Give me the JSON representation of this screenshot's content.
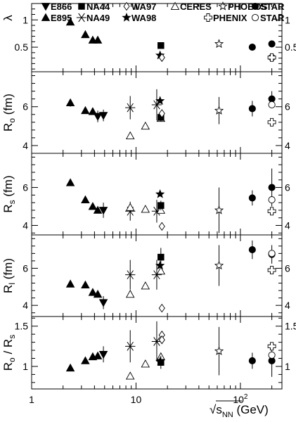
{
  "chart_data": {
    "type": "scatter",
    "x_scale": "log",
    "xlim": [
      1,
      250
    ],
    "x_ticks": [
      {
        "v": 1,
        "label": "1"
      },
      {
        "v": 10,
        "label": "10"
      },
      {
        "v": 100,
        "label": "10²"
      }
    ],
    "xlabel": "√s_NN (GeV)",
    "xlabel_parts": {
      "root": "√",
      "s": "s",
      "sub": "NN",
      "unit": " (GeV)"
    },
    "legend": [
      {
        "label": "E866",
        "marker": "tri-down",
        "series": "e866"
      },
      {
        "label": "NA44",
        "marker": "square",
        "series": "na44"
      },
      {
        "label": "WA97",
        "marker": "diamond-open",
        "series": "wa97"
      },
      {
        "label": "CERES",
        "marker": "tri-open",
        "series": "ceres"
      },
      {
        "label": "PHOBOS",
        "marker": "star-open",
        "series": "phobos"
      },
      {
        "label": "STAR",
        "marker": "circle",
        "series": "star_filled"
      },
      {
        "label": "E895",
        "marker": "tri-up",
        "series": "e895"
      },
      {
        "label": "NA49",
        "marker": "asterisk",
        "series": "na49"
      },
      {
        "label": "WA98",
        "marker": "star",
        "series": "wa98"
      },
      {
        "label": "PHENIX",
        "marker": "cross-open",
        "series": "phenix"
      },
      {
        "label": "STAR",
        "marker": "circle-open",
        "series": "star_open"
      }
    ],
    "panels": [
      {
        "id": "lambda",
        "ylabel": "λ",
        "ylim": [
          0.05,
          1.3
        ],
        "yticks": [
          {
            "v": 0.5,
            "label": "0.5"
          },
          {
            "v": 1,
            "label": "1"
          }
        ],
        "series": [
          {
            "id": "e895",
            "points": [
              [
                2.35,
                0.96
              ],
              [
                3.27,
                0.73
              ],
              [
                3.85,
                0.63
              ],
              [
                4.3,
                0.63
              ]
            ]
          },
          {
            "id": "na44",
            "points": [
              [
                17.3,
                0.53
              ]
            ]
          },
          {
            "id": "wa98",
            "points": [
              [
                17.0,
                0.35
              ]
            ]
          },
          {
            "id": "wa97",
            "points": [
              [
                17.7,
                0.31
              ]
            ]
          },
          {
            "id": "phobos",
            "points": [
              [
                62.4,
                0.56
              ]
            ]
          },
          {
            "id": "star_filled",
            "points": [
              [
                130,
                0.5
              ],
              [
                200,
                0.56
              ]
            ]
          },
          {
            "id": "star_open",
            "points": [
              [
                200,
                0.31
              ]
            ]
          },
          {
            "id": "phenix",
            "points": [
              [
                200,
                0.31
              ]
            ]
          }
        ]
      },
      {
        "id": "ro",
        "ylabel": "R_o (fm)",
        "ylabel_parts": {
          "main": "R",
          "sub": "o",
          "unit": " (fm)"
        },
        "ylim": [
          3.6,
          7.8
        ],
        "yticks": [
          {
            "v": 4,
            "label": "4"
          },
          {
            "v": 6,
            "label": "6"
          }
        ],
        "series": [
          {
            "id": "e895",
            "points": [
              [
                2.35,
                6.2,
                0.2
              ],
              [
                3.27,
                5.8,
                0.15
              ],
              [
                3.85,
                5.75,
                0.15
              ]
            ]
          },
          {
            "id": "e866",
            "points": [
              [
                4.3,
                5.5,
                0.3
              ],
              [
                4.87,
                5.55,
                0.3
              ]
            ]
          },
          {
            "id": "na49",
            "points": [
              [
                8.8,
                5.95,
                0.6
              ],
              [
                15.8,
                6.1,
                0.8
              ]
            ]
          },
          {
            "id": "ceres",
            "points": [
              [
                8.8,
                4.5
              ],
              [
                12.3,
                5.0
              ],
              [
                17.3,
                5.4
              ]
            ]
          },
          {
            "id": "wa98",
            "points": [
              [
                17.0,
                6.3
              ]
            ]
          },
          {
            "id": "na44",
            "points": [
              [
                17.3,
                5.45,
                0.2
              ]
            ]
          },
          {
            "id": "wa97",
            "points": [
              [
                17.7,
                5.65
              ]
            ]
          },
          {
            "id": "phobos",
            "points": [
              [
                62.4,
                5.8,
                0.7
              ]
            ]
          },
          {
            "id": "star_filled",
            "points": [
              [
                130,
                5.9,
                0.4
              ],
              [
                200,
                6.4,
                0.4
              ]
            ]
          },
          {
            "id": "star_open",
            "points": [
              [
                200,
                6.1
              ]
            ]
          },
          {
            "id": "phenix",
            "points": [
              [
                200,
                5.2
              ]
            ]
          }
        ]
      },
      {
        "id": "rs",
        "ylabel": "R_s (fm)",
        "ylabel_parts": {
          "main": "R",
          "sub": "s",
          "unit": " (fm)"
        },
        "ylim": [
          3.5,
          7.8
        ],
        "yticks": [
          {
            "v": 4,
            "label": "4"
          },
          {
            "v": 6,
            "label": "6"
          }
        ],
        "series": [
          {
            "id": "e895",
            "points": [
              [
                2.35,
                6.25
              ],
              [
                3.27,
                5.35
              ],
              [
                3.85,
                5.0
              ],
              [
                4.3,
                4.8
              ]
            ]
          },
          {
            "id": "e866",
            "points": [
              [
                4.87,
                4.8,
                0.4
              ]
            ]
          },
          {
            "id": "na49",
            "points": [
              [
                8.8,
                4.75,
                0.5
              ],
              [
                15.8,
                4.75,
                0.6
              ]
            ]
          },
          {
            "id": "ceres",
            "points": [
              [
                8.8,
                4.95
              ],
              [
                12.3,
                4.85
              ],
              [
                17.3,
                4.8
              ]
            ]
          },
          {
            "id": "wa98",
            "points": [
              [
                17.0,
                5.65
              ]
            ]
          },
          {
            "id": "na44",
            "points": [
              [
                17.3,
                5.05,
                0.25
              ]
            ]
          },
          {
            "id": "wa97",
            "points": [
              [
                17.7,
                3.95
              ]
            ]
          },
          {
            "id": "phobos",
            "points": [
              [
                62.4,
                4.8,
                1.2
              ]
            ]
          },
          {
            "id": "star_filled",
            "points": [
              [
                130,
                5.45,
                0.4
              ],
              [
                200,
                6.0,
                1.0
              ]
            ]
          },
          {
            "id": "star_open",
            "points": [
              [
                200,
                5.35
              ]
            ]
          },
          {
            "id": "phenix",
            "points": [
              [
                200,
                4.75
              ]
            ]
          }
        ]
      },
      {
        "id": "rl",
        "ylabel": "R_l (fm)",
        "ylabel_parts": {
          "main": "R",
          "sub": "l",
          "unit": " (fm)"
        },
        "ylim": [
          3.4,
          7.8
        ],
        "yticks": [
          {
            "v": 4,
            "label": "4"
          },
          {
            "v": 6,
            "label": "6"
          }
        ],
        "series": [
          {
            "id": "e895",
            "points": [
              [
                2.35,
                5.15
              ],
              [
                3.27,
                5.1
              ],
              [
                3.85,
                4.7
              ],
              [
                4.3,
                4.6
              ]
            ]
          },
          {
            "id": "e866",
            "points": [
              [
                4.87,
                4.15,
                0.35
              ]
            ]
          },
          {
            "id": "na49",
            "points": [
              [
                8.8,
                5.65,
                0.8
              ],
              [
                15.8,
                5.65,
                0.8
              ]
            ]
          },
          {
            "id": "ceres",
            "points": [
              [
                8.8,
                4.6
              ],
              [
                12.3,
                5.05
              ],
              [
                17.3,
                5.85
              ]
            ]
          },
          {
            "id": "wa98",
            "points": [
              [
                17.0,
                6.15
              ]
            ]
          },
          {
            "id": "na44",
            "points": [
              [
                17.3,
                6.6,
                0.5
              ]
            ]
          },
          {
            "id": "wa97",
            "points": [
              [
                17.7,
                3.85
              ]
            ]
          },
          {
            "id": "phobos",
            "points": [
              [
                62.4,
                6.15,
                1.1
              ]
            ]
          },
          {
            "id": "star_filled",
            "points": [
              [
                130,
                7.0,
                0.5
              ],
              [
                200,
                6.75,
                0.5
              ]
            ]
          },
          {
            "id": "star_open",
            "points": [
              [
                200,
                6.8
              ]
            ]
          },
          {
            "id": "phenix",
            "points": [
              [
                200,
                5.9
              ]
            ]
          }
        ]
      },
      {
        "id": "ro_rs",
        "ylabel": "R_o / R_s",
        "ylabel_parts": {
          "main": "R",
          "sub": "o",
          "mid": " / R",
          "sub2": "s"
        },
        "ylim": [
          0.72,
          1.62
        ],
        "yticks": [
          {
            "v": 1,
            "label": "1"
          },
          {
            "v": 1.5,
            "label": "1.5"
          }
        ],
        "series": [
          {
            "id": "e895",
            "points": [
              [
                2.35,
                0.98
              ],
              [
                3.27,
                1.07
              ],
              [
                3.85,
                1.12
              ],
              [
                4.3,
                1.13
              ]
            ]
          },
          {
            "id": "e866",
            "points": [
              [
                4.87,
                1.15,
                0.1
              ]
            ]
          },
          {
            "id": "na49",
            "points": [
              [
                8.8,
                1.25,
                0.2
              ],
              [
                15.8,
                1.31,
                0.25
              ]
            ]
          },
          {
            "id": "ceres",
            "points": [
              [
                8.8,
                0.88
              ],
              [
                12.3,
                1.03
              ],
              [
                17.3,
                1.12
              ]
            ]
          },
          {
            "id": "wa98",
            "points": [
              [
                17.0,
                1.06
              ]
            ]
          },
          {
            "id": "na44",
            "points": [
              [
                17.3,
                1.05,
                0.08
              ]
            ]
          },
          {
            "id": "wa97",
            "points": [
              [
                17.7,
                1.39
              ],
              [
                17.7,
                1.33
              ]
            ]
          },
          {
            "id": "phobos",
            "points": [
              [
                62.4,
                1.19,
                0.3
              ]
            ]
          },
          {
            "id": "star_filled",
            "points": [
              [
                130,
                1.07,
                0.1
              ],
              [
                200,
                1.07,
                0.2
              ]
            ]
          },
          {
            "id": "star_open",
            "points": [
              [
                200,
                1.14
              ]
            ]
          },
          {
            "id": "phenix",
            "points": [
              [
                200,
                1.25
              ]
            ]
          }
        ]
      }
    ]
  }
}
